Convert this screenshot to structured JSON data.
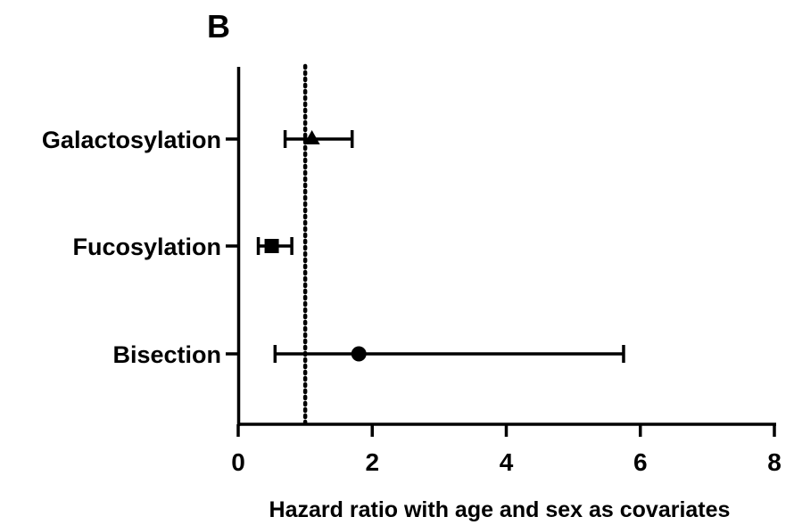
{
  "chart_data": {
    "type": "forest",
    "panel_label": "B",
    "xlabel": "Hazard ratio with age and sex as covariates",
    "xlim": [
      0,
      8
    ],
    "xticks": [
      0,
      2,
      4,
      6,
      8
    ],
    "xtick_labels": [
      "0",
      "2",
      "4",
      "6",
      "8"
    ],
    "reference_line": 1,
    "reference_style": "dotted",
    "grid": false,
    "rows": [
      {
        "label": "Galactosylation",
        "estimate": 1.1,
        "ci_low": 0.7,
        "ci_high": 1.7,
        "marker": "triangle"
      },
      {
        "label": "Fucosylation",
        "estimate": 0.5,
        "ci_low": 0.3,
        "ci_high": 0.8,
        "marker": "square"
      },
      {
        "label": "Bisection",
        "estimate": 1.8,
        "ci_low": 0.55,
        "ci_high": 5.75,
        "marker": "circle"
      }
    ]
  }
}
